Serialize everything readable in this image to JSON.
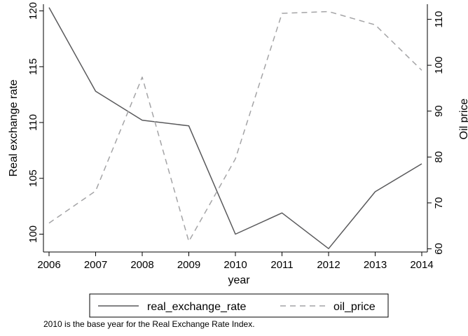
{
  "chart_data": {
    "type": "line",
    "x": [
      2006,
      2007,
      2008,
      2009,
      2010,
      2011,
      2012,
      2013,
      2014
    ],
    "xlabel": "year",
    "xlim": [
      2006,
      2014
    ],
    "series": [
      {
        "name": "real_exchange_rate",
        "axis": "left",
        "style": "solid",
        "color": "#59595b",
        "values": [
          120.3,
          112.8,
          110.2,
          109.7,
          100.0,
          101.9,
          98.7,
          103.8,
          106.3
        ]
      },
      {
        "name": "oil_price",
        "axis": "right",
        "style": "dashed",
        "color": "#a4a4a6",
        "values": [
          65.6,
          72.6,
          97.4,
          61.6,
          79.6,
          111.3,
          111.7,
          108.8,
          98.9
        ]
      }
    ],
    "y_left": {
      "label": "Real exchange rate",
      "ticks": [
        100,
        105,
        110,
        115,
        120
      ],
      "lim": [
        98.4,
        120.6
      ]
    },
    "y_right": {
      "label": "Oil price",
      "ticks": [
        60,
        70,
        80,
        90,
        100,
        110
      ],
      "lim": [
        59.3,
        113.3
      ]
    },
    "grid": false,
    "legend": "bottom",
    "note": "2010 is the base year for the Real Exchange Rate Index."
  }
}
